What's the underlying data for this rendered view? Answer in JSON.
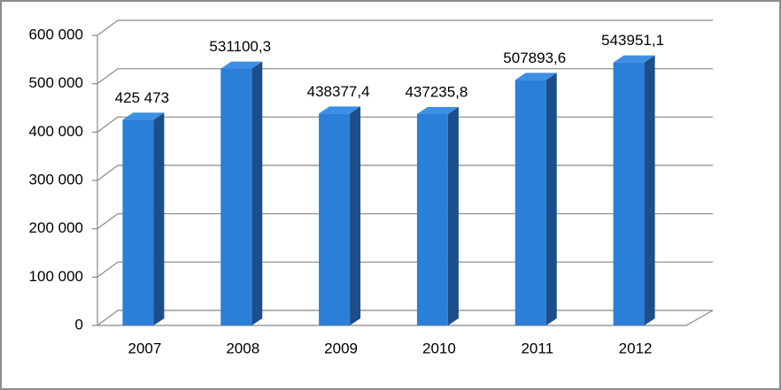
{
  "chart_data": {
    "type": "bar3d",
    "categories": [
      "2007",
      "2008",
      "2009",
      "2010",
      "2011",
      "2012"
    ],
    "values": [
      425473,
      531100.3,
      438377.4,
      437235.8,
      507893.6,
      543951.1
    ],
    "value_labels": [
      "425 473",
      "531100,3",
      "438377,4",
      "437235,8",
      "507893,6",
      "543951,1"
    ],
    "color": "#2b7fd8",
    "ylim": [
      0,
      600000
    ],
    "yticks": [
      0,
      {
        "value": 100000,
        "label": "100 000"
      },
      {
        "value": 200000,
        "label": "200 000"
      },
      {
        "value": 300000,
        "label": "300 000"
      },
      {
        "value": 400000,
        "label": "400 000"
      },
      {
        "value": 500000,
        "label": "500 000"
      },
      {
        "value": 600000,
        "label": "600 000"
      }
    ],
    "grid": true
  }
}
